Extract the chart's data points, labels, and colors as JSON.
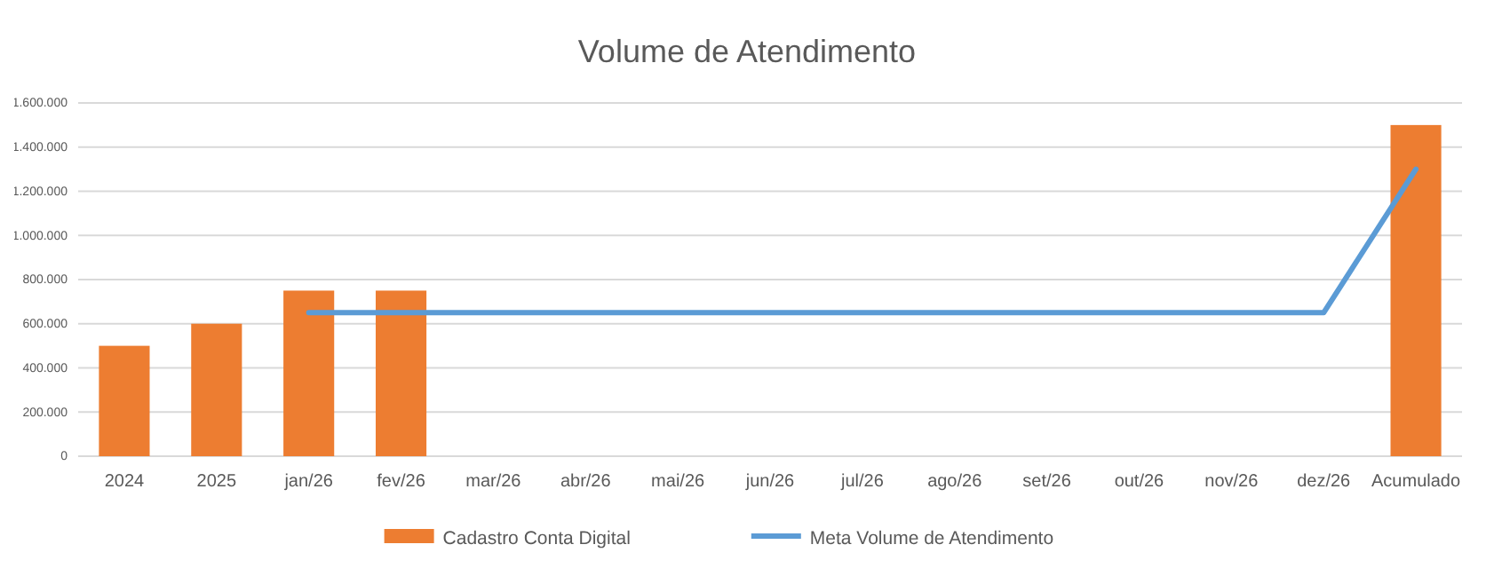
{
  "chart_data": {
    "type": "bar",
    "title": "Volume de Atendimento",
    "categories": [
      "2024",
      "2025",
      "jan/26",
      "fev/26",
      "mar/26",
      "abr/26",
      "mai/26",
      "jun/26",
      "jul/26",
      "ago/26",
      "set/26",
      "out/26",
      "nov/26",
      "dez/26",
      "Acumulado"
    ],
    "series": [
      {
        "name": "Cadastro Conta Digital",
        "color": "#ed7d31",
        "values": [
          500000,
          600000,
          750000,
          750000,
          null,
          null,
          null,
          null,
          null,
          null,
          null,
          null,
          null,
          null,
          1500000
        ]
      },
      {
        "name": "Meta Volume de Atendimento",
        "type": "line",
        "color": "#5b9bd5",
        "values": [
          null,
          null,
          650000,
          650000,
          650000,
          650000,
          650000,
          650000,
          650000,
          650000,
          650000,
          650000,
          650000,
          650000,
          1300000
        ]
      }
    ],
    "ylim": [
      0,
      1600000
    ],
    "yticks": [
      0,
      {
        "value": 200000,
        "label": "200.000"
      },
      {
        "value": 400000,
        "label": "400.000"
      },
      {
        "value": 600000,
        "label": "600.000"
      },
      {
        "value": 800000,
        "label": "800.000"
      },
      {
        "value": 1000000,
        "label": "1.000.000"
      },
      {
        "value": 1200000,
        "label": "1.200.000"
      },
      {
        "value": 1400000,
        "label": "1.400.000"
      },
      {
        "value": 1600000,
        "label": "1.600.000"
      }
    ],
    "grid": "y",
    "legend": "bottom",
    "marker": "none",
    "line_style": "solid"
  }
}
